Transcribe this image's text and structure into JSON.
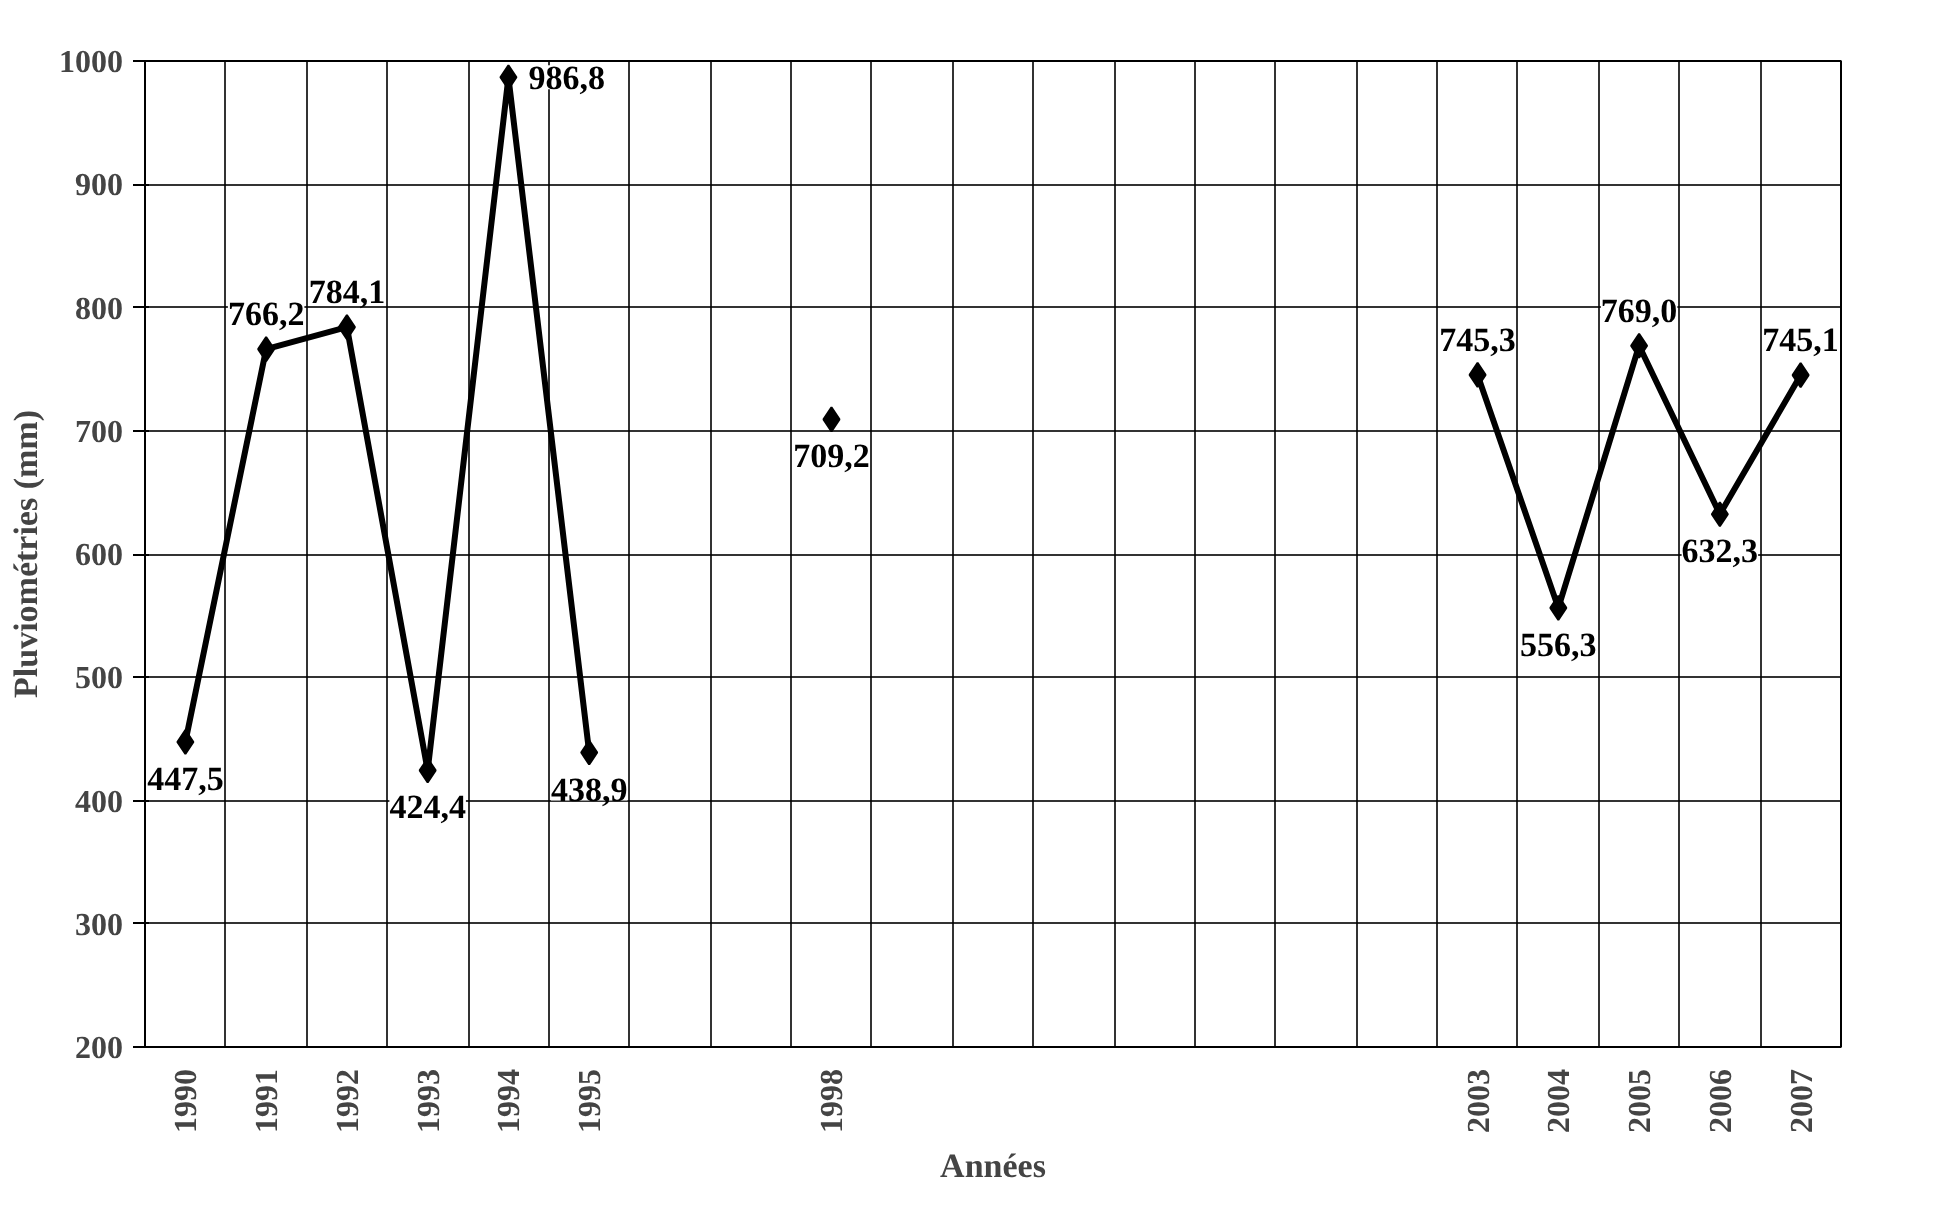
{
  "chart_data": {
    "type": "line",
    "xlabel": "Années",
    "ylabel": "Pluviométries (mm)",
    "categories": [
      "1990",
      "1991",
      "1992",
      "1993",
      "1994",
      "1995",
      null,
      null,
      "1998",
      null,
      null,
      null,
      null,
      null,
      null,
      null,
      "2003",
      "2004",
      "2005",
      "2006",
      "2007"
    ],
    "series": [
      {
        "color": "#000000",
        "values": [
          447.5,
          766.2,
          784.1,
          424.4,
          986.8,
          438.9,
          null,
          null,
          709.2,
          null,
          null,
          null,
          null,
          null,
          null,
          null,
          745.3,
          556.3,
          769.0,
          632.3,
          745.1
        ]
      }
    ],
    "value_labels": [
      "447,5",
      "766,2",
      "784,1",
      "424,4",
      "986,8",
      "438,9",
      null,
      null,
      "709,2",
      null,
      null,
      null,
      null,
      null,
      null,
      null,
      "745,3",
      "556,3",
      "769,0",
      "632,3",
      "745,1"
    ],
    "ylim": [
      200,
      1000
    ],
    "yticks": [
      200,
      300,
      400,
      500,
      600,
      700,
      800,
      900,
      1000
    ],
    "grid": true,
    "marker": "diamond",
    "line_style": "solid"
  }
}
